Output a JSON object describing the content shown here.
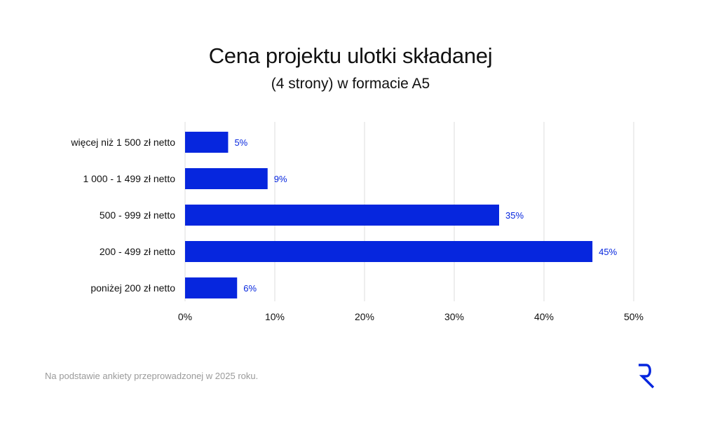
{
  "header": {
    "title": "Cena projektu ulotki składanej",
    "subtitle": "(4 strony) w formacie A5"
  },
  "footer": {
    "note": "Na podstawie ankiety przeprowadzonej w 2025 roku.",
    "logo_icon": "r-logo-icon"
  },
  "colors": {
    "bar": "#0626DE",
    "bar_label": "#0626DE",
    "grid": "#e2e2e2",
    "text": "#111111",
    "note": "#9a9a9a"
  },
  "chart_data": {
    "type": "bar",
    "orientation": "horizontal",
    "title": "Cena projektu ulotki składanej",
    "subtitle": "(4 strony) w formacie A5",
    "categories": [
      "więcej niż 1 500 zł netto",
      "1 000 - 1 499 zł netto",
      "500 - 999 zł netto",
      "200 - 499 zł netto",
      "poniżej 200 zł netto"
    ],
    "values": [
      4.8,
      9.2,
      35,
      45.4,
      5.8
    ],
    "data_labels": [
      "5%",
      "9%",
      "35%",
      "45%",
      "6%"
    ],
    "xlim": [
      0,
      50
    ],
    "xticks": [
      0,
      10,
      20,
      30,
      40,
      50
    ],
    "xtick_labels": [
      "0%",
      "10%",
      "20%",
      "30%",
      "40%",
      "50%"
    ],
    "xlabel": "",
    "ylabel": "",
    "grid": true,
    "legend": "none"
  }
}
